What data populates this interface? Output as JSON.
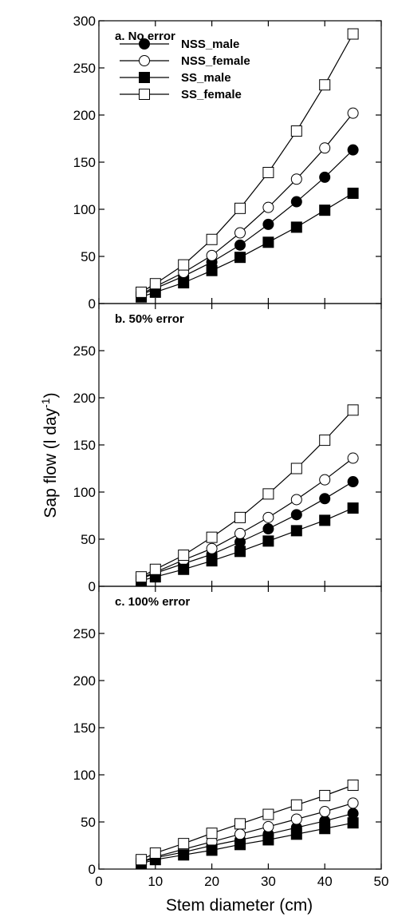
{
  "chart_data": {
    "type": "scatter",
    "xlabel": "Stem diameter (cm)",
    "ylabel": "Sap flow (l day",
    "ylabel_sup": "-1",
    "ylabel_end": ")",
    "xlim": [
      0,
      50
    ],
    "xticks": [
      0,
      10,
      20,
      30,
      40,
      50
    ],
    "grid": false,
    "legend_placement": "top-left (panel a)",
    "legend": [
      {
        "name": "NSS_male",
        "marker": "filled-circle"
      },
      {
        "name": "NSS_female",
        "marker": "open-circle"
      },
      {
        "name": "SS_male",
        "marker": "filled-square"
      },
      {
        "name": "SS_female",
        "marker": "open-square"
      }
    ],
    "x": [
      7.5,
      10,
      15,
      20,
      25,
      30,
      35,
      40,
      45
    ],
    "panels": [
      {
        "title": "a. No error",
        "ylim": [
          0,
          300
        ],
        "yticks": [
          0,
          50,
          100,
          150,
          200,
          250,
          300
        ],
        "series": [
          {
            "name": "NSS_male",
            "values": [
              9,
              16,
              29,
              44,
              62,
              84,
              108,
              134,
              163
            ]
          },
          {
            "name": "NSS_female",
            "values": [
              10,
              18,
              33,
              51,
              75,
              102,
              132,
              165,
              202
            ]
          },
          {
            "name": "SS_male",
            "values": [
              7,
              12,
              22,
              35,
              49,
              65,
              81,
              99,
              117
            ]
          },
          {
            "name": "SS_female",
            "values": [
              12,
              21,
              41,
              68,
              101,
              139,
              183,
              232,
              286
            ]
          }
        ]
      },
      {
        "title": "b. 50% error",
        "ylim": [
          0,
          300
        ],
        "yticks": [
          0,
          50,
          100,
          150,
          200,
          250
        ],
        "series": [
          {
            "name": "NSS_male",
            "values": [
              8,
              14,
              24,
              34,
              47,
              61,
              76,
              93,
              111
            ]
          },
          {
            "name": "NSS_female",
            "values": [
              9,
              15,
              28,
              40,
              56,
              73,
              92,
              113,
              136
            ]
          },
          {
            "name": "SS_male",
            "values": [
              6,
              10,
              18,
              27,
              37,
              48,
              59,
              70,
              83
            ]
          },
          {
            "name": "SS_female",
            "values": [
              10,
              18,
              33,
              52,
              73,
              98,
              125,
              155,
              187
            ]
          }
        ]
      },
      {
        "title": "c. 100% error",
        "ylim": [
          0,
          300
        ],
        "yticks": [
          0,
          50,
          100,
          150,
          200,
          250
        ],
        "series": [
          {
            "name": "NSS_male",
            "values": [
              7,
              12,
              18,
              25,
              31,
              37,
              44,
              51,
              59
            ]
          },
          {
            "name": "NSS_female",
            "values": [
              8,
              13,
              21,
              29,
              37,
              45,
              53,
              61,
              70
            ]
          },
          {
            "name": "SS_male",
            "values": [
              6,
              10,
              15,
              20,
              26,
              31,
              37,
              43,
              49
            ]
          },
          {
            "name": "SS_female",
            "values": [
              10,
              17,
              27,
              38,
              48,
              58,
              68,
              78,
              89
            ]
          }
        ]
      }
    ]
  }
}
